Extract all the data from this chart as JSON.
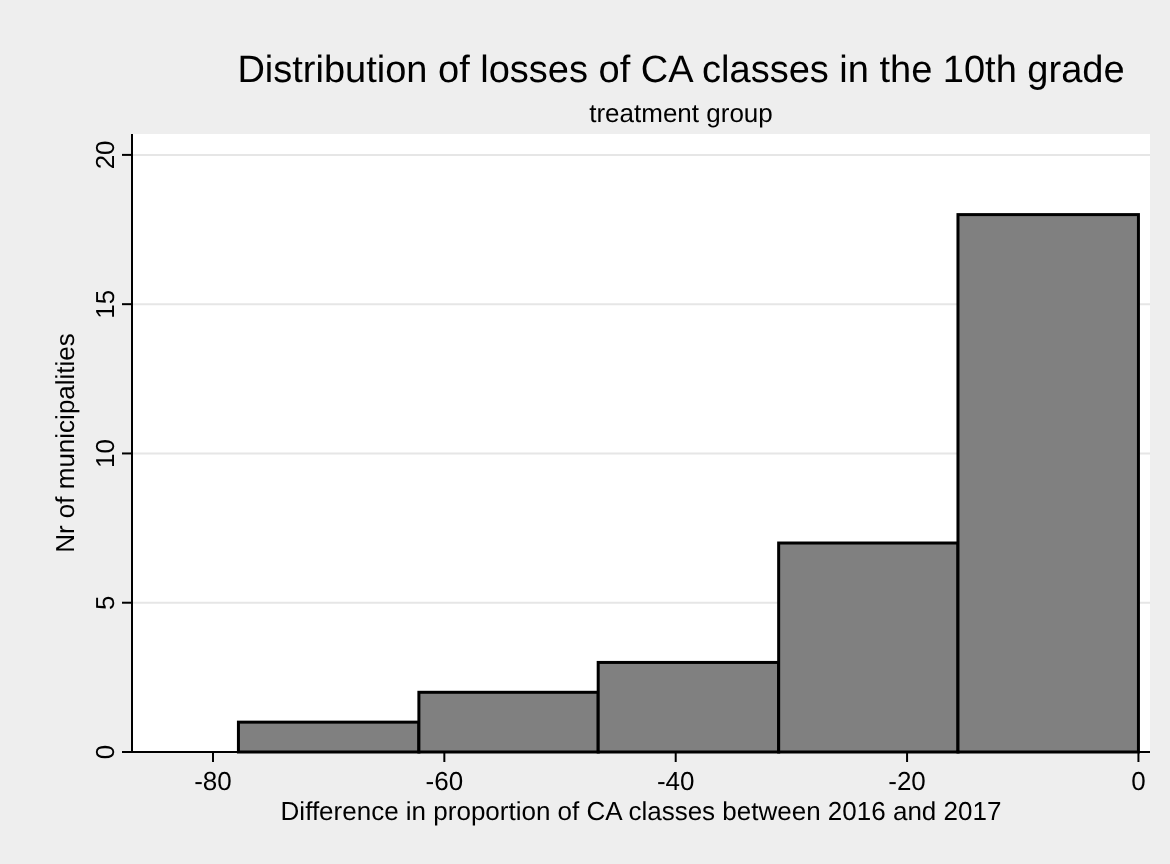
{
  "chart_data": {
    "type": "histogram",
    "title": "Distribution of losses of CA classes in the 10th grade",
    "subtitle": "treatment group",
    "xlabel": "Difference in proportion of CA classes between 2016 and 2017",
    "ylabel": "Nr of municipalities",
    "bins": [
      -77.8,
      -62.2,
      -46.7,
      -31.1,
      -15.6,
      0
    ],
    "values": [
      1,
      2,
      3,
      7,
      18
    ],
    "color": "#808080",
    "xlim": [
      -87,
      1
    ],
    "xticks": [
      -80,
      -60,
      -40,
      -20,
      0
    ],
    "ylim": [
      0,
      20.7
    ],
    "yticks": [
      0,
      5,
      10,
      15,
      20
    ],
    "grid": "y"
  }
}
